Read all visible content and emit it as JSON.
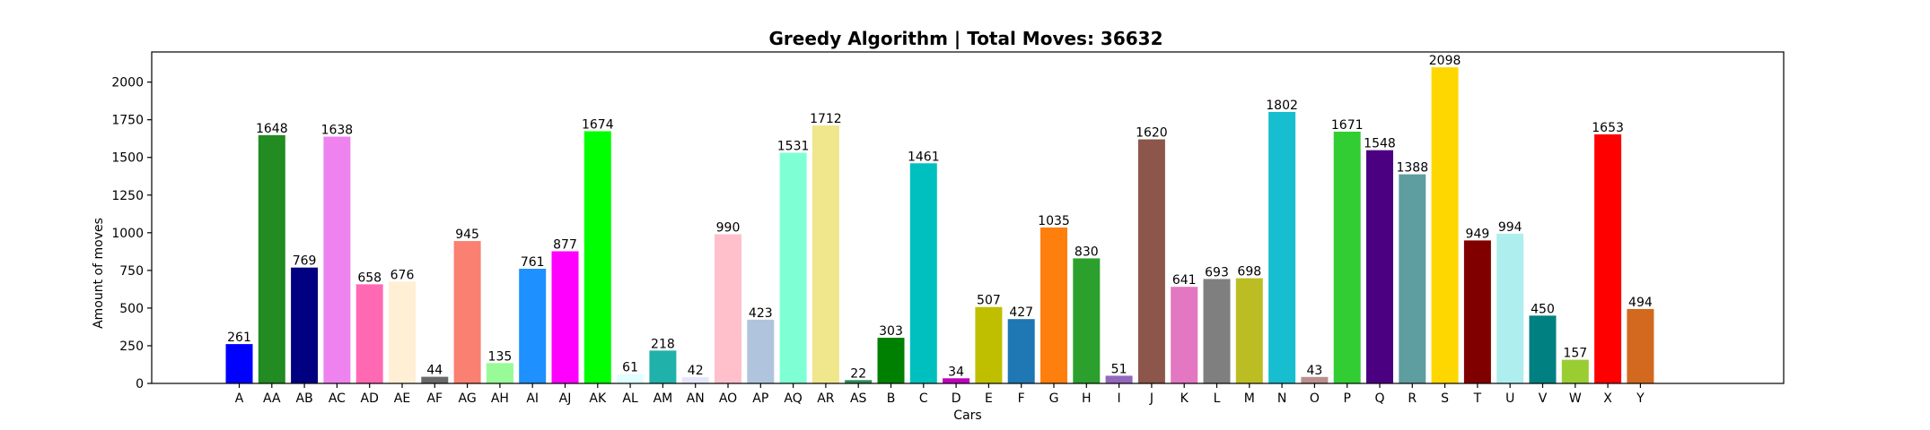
{
  "chart_data": {
    "type": "bar",
    "title": "Greedy Algorithm | Total Moves: 36632",
    "xlabel": "Cars",
    "ylabel": "Amount of moves",
    "ylim": [
      0,
      2200
    ],
    "yticks": [
      0,
      250,
      500,
      750,
      1000,
      1250,
      1500,
      1750,
      2000
    ],
    "grid": false,
    "categories": [
      "A",
      "AA",
      "AB",
      "AC",
      "AD",
      "AE",
      "AF",
      "AG",
      "AH",
      "AI",
      "AJ",
      "AK",
      "AL",
      "AM",
      "AN",
      "AO",
      "AP",
      "AQ",
      "AR",
      "AS",
      "B",
      "C",
      "D",
      "E",
      "F",
      "G",
      "H",
      "I",
      "J",
      "K",
      "L",
      "M",
      "N",
      "O",
      "P",
      "Q",
      "R",
      "S",
      "T",
      "U",
      "V",
      "W",
      "X",
      "Y"
    ],
    "values": [
      261,
      1648,
      769,
      1638,
      658,
      676,
      44,
      945,
      135,
      761,
      877,
      1674,
      61,
      218,
      42,
      990,
      423,
      1531,
      1712,
      22,
      303,
      1461,
      34,
      507,
      427,
      1035,
      830,
      51,
      1620,
      641,
      693,
      698,
      1802,
      43,
      1671,
      1548,
      1388,
      2098,
      949,
      994,
      450,
      157,
      1653,
      494
    ],
    "colors": [
      "#0000ff",
      "#228b22",
      "#000080",
      "#ee82ee",
      "#ff69b4",
      "#ffefd5",
      "#696969",
      "#fa8072",
      "#98fb98",
      "#1e90ff",
      "#ff00ff",
      "#00ff00",
      "#e0ffff",
      "#20b2aa",
      "#e6e6fa",
      "#ffc0cb",
      "#b0c4de",
      "#7fffd4",
      "#f0e68c",
      "#2e8b57",
      "#008000",
      "#00bfbf",
      "#bf00bf",
      "#bfbf00",
      "#1f77b4",
      "#ff7f0e",
      "#2ca02c",
      "#9467bd",
      "#8c564b",
      "#e377c2",
      "#7f7f7f",
      "#bcbd22",
      "#17becf",
      "#bc8f8f",
      "#32cd32",
      "#4b0082",
      "#5f9ea0",
      "#ffd700",
      "#800000",
      "#afeeee",
      "#008080",
      "#9acd32",
      "#ff0000",
      "#d2691e"
    ]
  }
}
